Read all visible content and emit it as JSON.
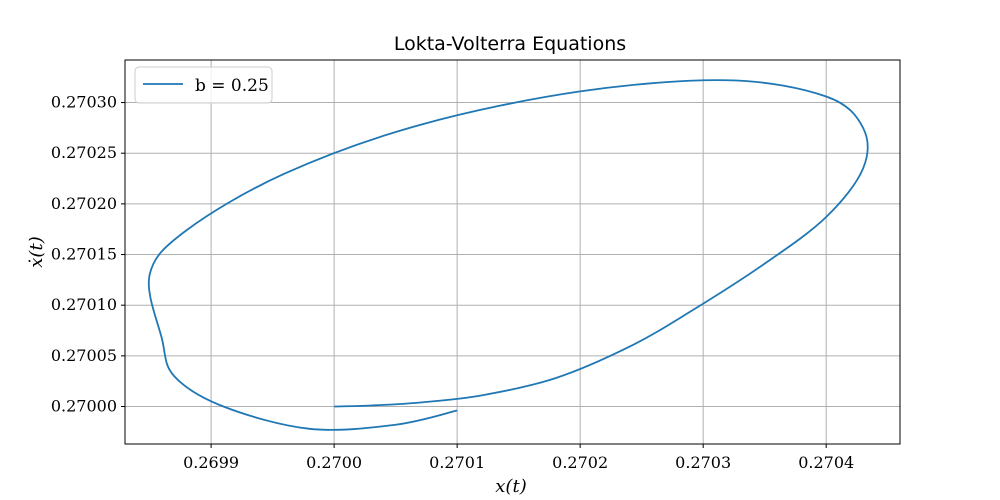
{
  "chart_data": {
    "type": "line",
    "title": "Lokta-Volterra Equations",
    "xlabel": "x(t)",
    "ylabel": "ẋ(t)",
    "xlim": [
      0.26983,
      0.27046
    ],
    "ylim": [
      0.269963,
      0.270342
    ],
    "grid": true,
    "legend_position": "top-left",
    "x_ticks": [
      "0.2699",
      "0.2700",
      "0.2701",
      "0.2702",
      "0.2703",
      "0.2704"
    ],
    "y_ticks": [
      "0.27000",
      "0.27005",
      "0.27010",
      "0.27015",
      "0.27020",
      "0.27025",
      "0.27030"
    ],
    "series": [
      {
        "name": "b = 0.25",
        "color": "#1f77b4",
        "points": [
          [
            0.27,
            0.27
          ],
          [
            0.27003,
            0.270001
          ],
          [
            0.27007,
            0.270004
          ],
          [
            0.27012,
            0.270011
          ],
          [
            0.27018,
            0.270028
          ],
          [
            0.27024,
            0.270059
          ],
          [
            0.27029,
            0.270094
          ],
          [
            0.27035,
            0.270141
          ],
          [
            0.2704,
            0.270187
          ],
          [
            0.27043,
            0.270235
          ],
          [
            0.27043,
            0.270275
          ],
          [
            0.2704,
            0.270306
          ],
          [
            0.27032,
            0.270322
          ],
          [
            0.2702,
            0.270311
          ],
          [
            0.27007,
            0.270278
          ],
          [
            0.26996,
            0.27023
          ],
          [
            0.26988,
            0.270174
          ],
          [
            0.26985,
            0.27013
          ],
          [
            0.26986,
            0.270067
          ],
          [
            0.26987,
            0.27003
          ],
          [
            0.26991,
            0.27
          ],
          [
            0.26998,
            0.269978
          ],
          [
            0.27005,
            0.269982
          ],
          [
            0.2701,
            0.269996
          ]
        ]
      }
    ]
  }
}
